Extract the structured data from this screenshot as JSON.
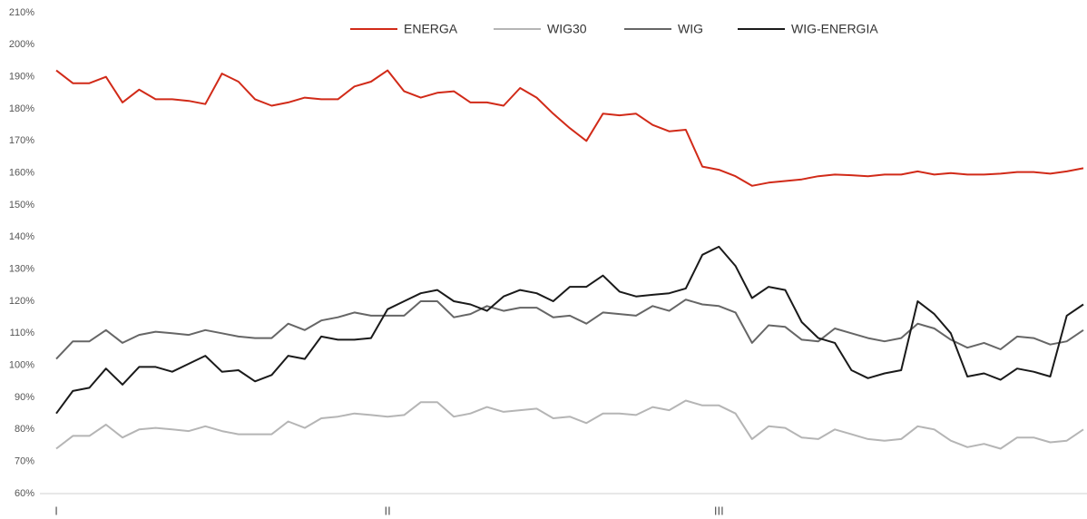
{
  "chart_data": {
    "type": "line",
    "categories": [
      "I",
      null,
      null,
      null,
      null,
      null,
      null,
      null,
      null,
      null,
      null,
      null,
      null,
      null,
      null,
      null,
      null,
      null,
      null,
      null,
      "II",
      null,
      null,
      null,
      null,
      null,
      null,
      null,
      null,
      null,
      null,
      null,
      null,
      null,
      null,
      null,
      null,
      null,
      null,
      null,
      "III",
      null,
      null,
      null,
      null,
      null,
      null,
      null,
      null,
      null,
      null,
      null,
      null,
      null,
      null,
      null,
      null,
      null,
      null,
      null,
      null,
      null,
      null
    ],
    "series": [
      {
        "name": "ENERGA",
        "color": "#d12a18",
        "values": [
          192,
          188,
          188,
          190,
          182,
          186,
          183,
          183,
          182.5,
          181.5,
          191,
          188.5,
          183,
          181,
          182,
          183.5,
          183,
          183,
          187,
          188.5,
          192,
          185.5,
          183.5,
          185,
          185.5,
          182,
          182,
          181,
          186.5,
          183.5,
          178.5,
          174,
          170,
          178.5,
          178,
          178.5,
          175,
          173,
          173.5,
          162,
          161,
          159,
          156,
          157,
          157.5,
          158,
          159,
          159.5,
          159.3,
          159,
          159.5,
          159.5,
          160.5,
          159.5,
          160,
          159.5,
          159.5,
          159.8,
          160.3,
          160.3,
          159.8,
          160.5,
          161.5
        ]
      },
      {
        "name": "WIG30",
        "color": "#b5b5b5",
        "values": [
          74,
          78,
          78,
          81.5,
          77.5,
          80,
          80.5,
          80,
          79.5,
          81,
          79.5,
          78.5,
          78.5,
          78.5,
          82.5,
          80.5,
          83.5,
          84,
          85,
          84.5,
          84,
          84.5,
          88.5,
          88.5,
          84,
          85,
          87,
          85.5,
          86,
          86.5,
          83.5,
          84,
          82,
          85,
          85,
          84.5,
          87,
          86,
          89,
          87.5,
          87.5,
          85,
          77,
          81,
          80.5,
          77.5,
          77,
          80,
          78.5,
          77,
          76.5,
          77,
          81,
          80,
          76.5,
          74.5,
          75.5,
          74,
          77.5,
          77.5,
          76,
          76.5,
          80
        ]
      },
      {
        "name": "WIG",
        "color": "#666666",
        "values": [
          102,
          107.5,
          107.5,
          111,
          107,
          109.5,
          110.5,
          110,
          109.5,
          111,
          110,
          109,
          108.5,
          108.5,
          113,
          111,
          114,
          115,
          116.5,
          115.5,
          115.5,
          115.5,
          120,
          120,
          115,
          116,
          118.5,
          117,
          118,
          118,
          115,
          115.5,
          113,
          116.5,
          116,
          115.5,
          118.5,
          117,
          120.5,
          119,
          118.5,
          116.5,
          107,
          112.5,
          112,
          108,
          107.5,
          111.5,
          110,
          108.5,
          107.5,
          108.5,
          113,
          111.5,
          108,
          105.5,
          107,
          105,
          109,
          108.5,
          106.5,
          107.5,
          111
        ]
      },
      {
        "name": "WIG-ENERGIA",
        "color": "#1a1a1a",
        "values": [
          85,
          92,
          93,
          99,
          94,
          99.5,
          99.5,
          98,
          100.5,
          103,
          98,
          98.5,
          95,
          97,
          103,
          102,
          109,
          108,
          108,
          108.5,
          117.5,
          120,
          122.5,
          123.5,
          120,
          119,
          117,
          121.5,
          123.5,
          122.5,
          120,
          124.5,
          124.5,
          128,
          123,
          121.5,
          122,
          122.5,
          124,
          134.5,
          137,
          131,
          121,
          124.5,
          123.5,
          113.5,
          108.5,
          107,
          98.5,
          96,
          97.5,
          98.5,
          120,
          116,
          110,
          96.5,
          97.5,
          95.5,
          99,
          98,
          96.5,
          115.5,
          119
        ]
      }
    ],
    "ylim": [
      60,
      210
    ],
    "yticks": [
      {
        "value": 60,
        "label": "60%"
      },
      {
        "value": 70,
        "label": "70%"
      },
      {
        "value": 80,
        "label": "80%"
      },
      {
        "value": 90,
        "label": "90%"
      },
      {
        "value": 100,
        "label": "100%"
      },
      {
        "value": 110,
        "label": "110%"
      },
      {
        "value": 120,
        "label": "120%"
      },
      {
        "value": 130,
        "label": "130%"
      },
      {
        "value": 140,
        "label": "140%"
      },
      {
        "value": 150,
        "label": "150%"
      },
      {
        "value": 160,
        "label": "160%"
      },
      {
        "value": 170,
        "label": "170%"
      },
      {
        "value": 180,
        "label": "180%"
      },
      {
        "value": 190,
        "label": "190%"
      },
      {
        "value": 200,
        "label": "200%"
      },
      {
        "value": 210,
        "label": "210%"
      }
    ],
    "grid": false,
    "legend": "top"
  }
}
